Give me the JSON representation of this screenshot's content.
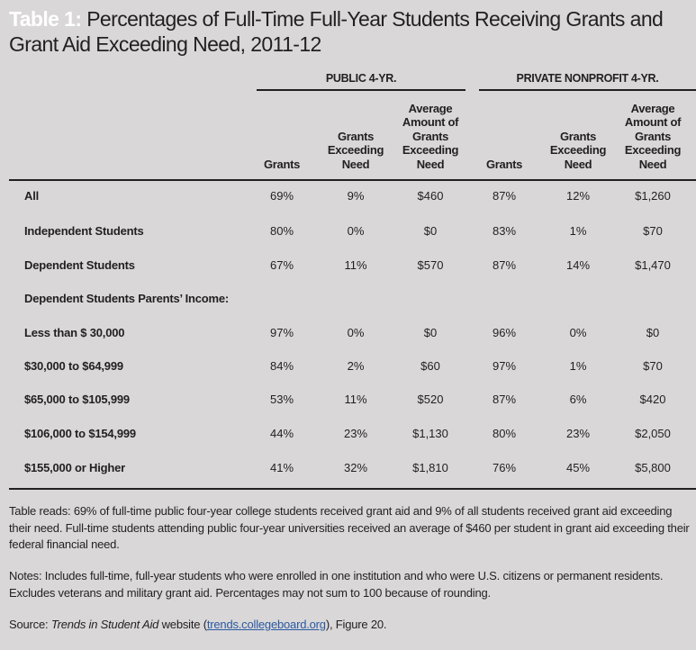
{
  "title": {
    "label": "Table 1:",
    "text": " Percentages of Full-Time Full-Year Students Receiving Grants and Grant Aid Exceeding Need, 2011-12"
  },
  "groups": [
    "PUBLIC 4-YR.",
    "PRIVATE NONPROFIT 4-YR."
  ],
  "columns": [
    "Grants",
    "Grants Exceeding Need",
    "Average Amount of Grants Exceeding Need",
    "Grants",
    "Grants Exceeding Need",
    "Average Amount of Grants Exceeding Need"
  ],
  "rows": [
    {
      "label": "All",
      "values": [
        "69%",
        "9%",
        "$460",
        "87%",
        "12%",
        "$1,260"
      ]
    },
    {
      "label": "Independent Students",
      "values": [
        "80%",
        "0%",
        "$0",
        "83%",
        "1%",
        "$70"
      ]
    },
    {
      "label": "Dependent Students",
      "values": [
        "67%",
        "11%",
        "$570",
        "87%",
        "14%",
        "$1,470"
      ]
    },
    {
      "label": "Dependent Students Parents’ Income:",
      "values": [
        "",
        "",
        "",
        "",
        "",
        ""
      ]
    },
    {
      "label": "Less than $ 30,000",
      "values": [
        "97%",
        "0%",
        "$0",
        "96%",
        "0%",
        "$0"
      ]
    },
    {
      "label": "$30,000 to $64,999",
      "values": [
        "84%",
        "2%",
        "$60",
        "97%",
        "1%",
        "$70"
      ]
    },
    {
      "label": "$65,000 to $105,999",
      "values": [
        "53%",
        "11%",
        "$520",
        "87%",
        "6%",
        "$420"
      ]
    },
    {
      "label": "$106,000 to $154,999",
      "values": [
        "44%",
        "23%",
        "$1,130",
        "80%",
        "23%",
        "$2,050"
      ]
    },
    {
      "label": "$155,000 or Higher",
      "values": [
        "41%",
        "32%",
        "$1,810",
        "76%",
        "45%",
        "$5,800"
      ]
    }
  ],
  "notes": {
    "reads": "Table reads: 69% of full-time public four-year college students received grant aid and 9% of all students received grant aid exceeding their need. Full-time students attending public four-year universities received an average of $460 per student in grant aid exceeding their federal financial need.",
    "notes": "Notes: Includes full-time, full-year students who were enrolled in one institution and who were U.S. citizens or permanent residents. Excludes veterans and military grant aid. Percentages may not sum to 100 because of rounding.",
    "source_prefix": "Source: ",
    "source_title": "Trends in Student Aid",
    "source_mid": " website (",
    "source_link": "trends.collegeboard.org",
    "source_suffix": "), Figure 20."
  }
}
